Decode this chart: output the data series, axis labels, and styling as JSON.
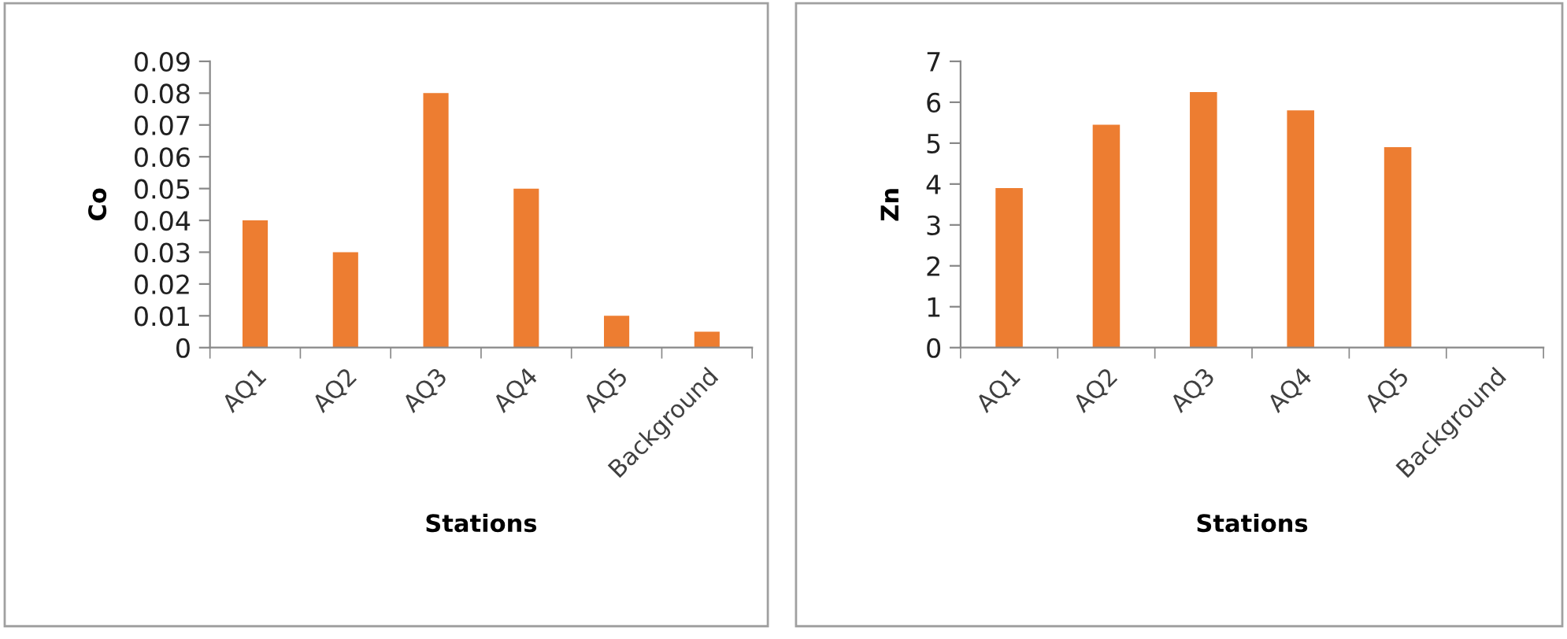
{
  "chart_data": [
    {
      "type": "bar",
      "xlabel": "Stations",
      "ylabel": "Co",
      "categories": [
        "AQ1",
        "AQ2",
        "AQ3",
        "AQ4",
        "AQ5",
        "Background"
      ],
      "values": [
        0.04,
        0.03,
        0.08,
        0.05,
        0.01,
        0.005
      ],
      "color": "#ed7d31",
      "ylim": [
        0,
        0.09
      ],
      "yticks": [
        0,
        0.01,
        0.02,
        0.03,
        0.04,
        0.05,
        0.06,
        0.07,
        0.08,
        0.09
      ],
      "grid": false,
      "legend": false
    },
    {
      "type": "bar",
      "xlabel": "Stations",
      "ylabel": "Zn",
      "categories": [
        "AQ1",
        "AQ2",
        "AQ3",
        "AQ4",
        "AQ5",
        "Background"
      ],
      "values": [
        3.9,
        5.45,
        6.25,
        5.8,
        4.9,
        null
      ],
      "color": "#ed7d31",
      "ylim": [
        0,
        7
      ],
      "yticks": [
        0,
        1,
        2,
        3,
        4,
        5,
        6,
        7
      ],
      "grid": false,
      "legend": false
    }
  ]
}
